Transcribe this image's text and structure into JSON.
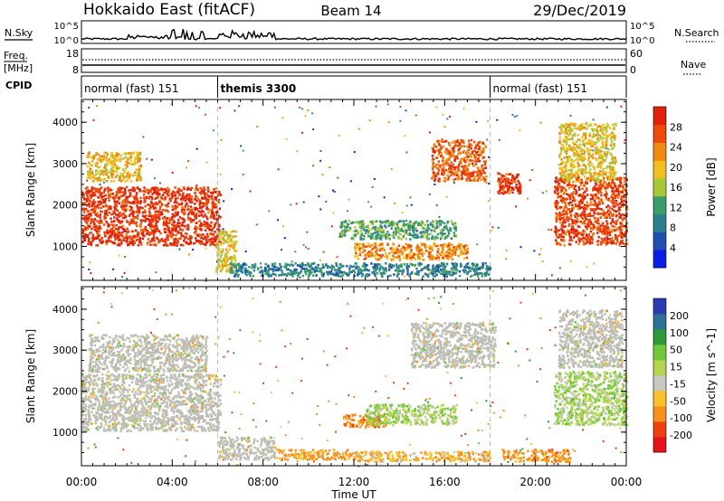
{
  "header": {
    "station": "Hokkaido East (fitACF)",
    "beam": "Beam 14",
    "date": "29/Dec/2019"
  },
  "noise_panel": {
    "left_label": "N.Sky",
    "right_label": "N.Search",
    "left_ticks": [
      "10^5",
      "10^0"
    ],
    "right_ticks": [
      "10^5",
      "10^0"
    ]
  },
  "freq_panel": {
    "left_label_top": "Freq.",
    "left_label_bottom": "[MHz]",
    "right_label": "Nave",
    "left_ticks": [
      "18",
      "8"
    ],
    "right_ticks": [
      "60",
      "0"
    ]
  },
  "cpid_panel": {
    "label": "CPID",
    "segments": [
      {
        "name": "normal (fast) 151",
        "start_hour": 0,
        "end_hour": 6
      },
      {
        "name": "themis 3300",
        "start_hour": 6,
        "end_hour": 18
      },
      {
        "name": "normal (fast) 151",
        "start_hour": 18,
        "end_hour": 24
      }
    ]
  },
  "colors": {
    "power_scale": [
      "#0a1ee6",
      "#1f4fb0",
      "#2e7e8e",
      "#3a9e6a",
      "#a8c838",
      "#f0c020",
      "#f08a10",
      "#ee4a0a",
      "#e02008"
    ],
    "velocity_scale": [
      "#e8121a",
      "#f04010",
      "#f59020",
      "#f8c02a",
      "#c8c8c0",
      "#b2d450",
      "#6ec838",
      "#2c9a3a",
      "#2e7098",
      "#2a3cb0"
    ],
    "ground_scatter": "#bdbdb5"
  },
  "chart_data": {
    "type": "heatmap",
    "x_axis": {
      "label": "Time UT",
      "range_hours": [
        0,
        24
      ],
      "tick_labels": [
        "00:00",
        "04:00",
        "08:00",
        "12:00",
        "16:00",
        "20:00",
        "00:00"
      ],
      "tick_hours": [
        0,
        4,
        8,
        12,
        16,
        20,
        24
      ]
    },
    "y_axis": {
      "label": "Slant Range [km]",
      "range_km": [
        180,
        4550
      ],
      "tick_labels": [
        "1000",
        "2000",
        "3000",
        "4000"
      ],
      "tick_values": [
        1000,
        2000,
        3000,
        4000
      ]
    },
    "dashed_lines_hours": [
      6,
      18
    ],
    "panels": [
      {
        "name": "power",
        "colorbar_label": "Power [dB]",
        "colorbar_ticks": [
          "28",
          "24",
          "20",
          "16",
          "12",
          "8",
          "4"
        ],
        "colorbar_range": [
          0,
          30
        ],
        "regions": [
          {
            "t0": 0.0,
            "t1": 6.1,
            "r0": 1050,
            "r1": 2450,
            "value": 27
          },
          {
            "t0": 0.2,
            "t1": 2.6,
            "r0": 2600,
            "r1": 3300,
            "value": 19
          },
          {
            "t0": 5.9,
            "t1": 6.8,
            "r0": 400,
            "r1": 1400,
            "value": 18
          },
          {
            "t0": 6.5,
            "t1": 18.0,
            "r0": 300,
            "r1": 620,
            "value": 9
          },
          {
            "t0": 11.3,
            "t1": 16.5,
            "r0": 1200,
            "r1": 1650,
            "value": 12
          },
          {
            "t0": 12.0,
            "t1": 17.0,
            "r0": 700,
            "r1": 1100,
            "value": 22
          },
          {
            "t0": 15.4,
            "t1": 17.8,
            "r0": 2600,
            "r1": 3600,
            "value": 24
          },
          {
            "t0": 18.3,
            "t1": 19.3,
            "r0": 2300,
            "r1": 2800,
            "value": 27
          },
          {
            "t0": 20.8,
            "t1": 24.0,
            "r0": 1050,
            "r1": 2700,
            "value": 26
          },
          {
            "t0": 21.0,
            "t1": 23.5,
            "r0": 2600,
            "r1": 4000,
            "value": 18
          }
        ]
      },
      {
        "name": "velocity",
        "colorbar_label": "Velocity [m s^-1]",
        "colorbar_ticks": [
          "200",
          "100",
          "50",
          "15",
          "-15",
          "-50",
          "-100",
          "-200"
        ],
        "colorbar_range": [
          -250,
          250
        ],
        "regions": [
          {
            "t0": 0.0,
            "t1": 6.1,
            "r0": 1050,
            "r1": 2450,
            "value": 0,
            "ground_scatter": true
          },
          {
            "t0": 0.3,
            "t1": 5.5,
            "r0": 2500,
            "r1": 3400,
            "value": 0,
            "ground_scatter": true
          },
          {
            "t0": 6.0,
            "t1": 8.5,
            "r0": 350,
            "r1": 900,
            "value": 0,
            "ground_scatter": true
          },
          {
            "t0": 8.5,
            "t1": 12.0,
            "r0": 350,
            "r1": 600,
            "value": -60
          },
          {
            "t0": 11.5,
            "t1": 13.5,
            "r0": 1150,
            "r1": 1450,
            "value": -80
          },
          {
            "t0": 12.5,
            "t1": 16.5,
            "r0": 1200,
            "r1": 1700,
            "value": 40
          },
          {
            "t0": 12.0,
            "t1": 18.0,
            "r0": 300,
            "r1": 550,
            "value": -40
          },
          {
            "t0": 14.5,
            "t1": 18.2,
            "r0": 2600,
            "r1": 3700,
            "value": 0,
            "ground_scatter": true
          },
          {
            "t0": 18.5,
            "t1": 21.5,
            "r0": 300,
            "r1": 600,
            "value": -70
          },
          {
            "t0": 20.8,
            "t1": 24.0,
            "r0": 1200,
            "r1": 2500,
            "value": 35
          },
          {
            "t0": 21.0,
            "t1": 23.8,
            "r0": 2600,
            "r1": 4000,
            "value": 0,
            "ground_scatter": true
          }
        ]
      }
    ]
  }
}
